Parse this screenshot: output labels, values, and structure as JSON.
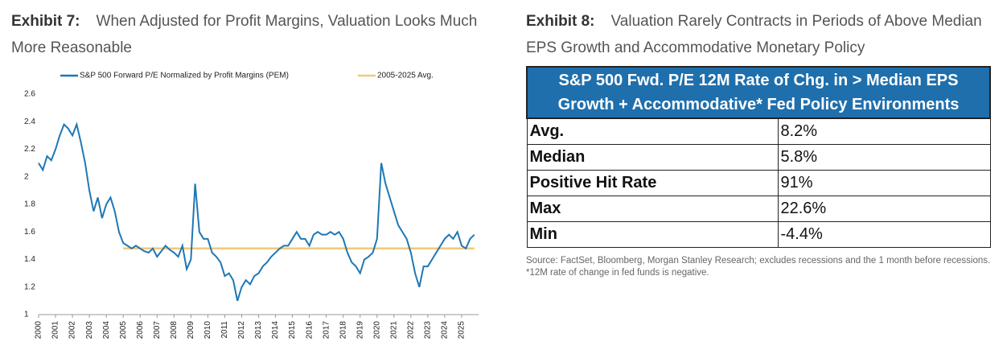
{
  "exhibit7": {
    "label": "Exhibit 7:",
    "title": "When Adjusted for Profit Margins, Valuation Looks Much More Reasonable"
  },
  "chart_data": {
    "type": "line",
    "x": [
      2000,
      2000.25,
      2000.5,
      2000.75,
      2001,
      2001.25,
      2001.5,
      2001.75,
      2002,
      2002.25,
      2002.5,
      2002.75,
      2003,
      2003.25,
      2003.5,
      2003.75,
      2004,
      2004.25,
      2004.5,
      2004.75,
      2005,
      2005.25,
      2005.5,
      2005.75,
      2006,
      2006.25,
      2006.5,
      2006.75,
      2007,
      2007.25,
      2007.5,
      2007.75,
      2008,
      2008.25,
      2008.5,
      2008.75,
      2009,
      2009.25,
      2009.5,
      2009.75,
      2010,
      2010.25,
      2010.5,
      2010.75,
      2011,
      2011.25,
      2011.5,
      2011.75,
      2012,
      2012.25,
      2012.5,
      2012.75,
      2013,
      2013.25,
      2013.5,
      2013.75,
      2014,
      2014.25,
      2014.5,
      2014.75,
      2015,
      2015.25,
      2015.5,
      2015.75,
      2016,
      2016.25,
      2016.5,
      2016.75,
      2017,
      2017.25,
      2017.5,
      2017.75,
      2018,
      2018.25,
      2018.5,
      2018.75,
      2019,
      2019.25,
      2019.5,
      2019.75,
      2020,
      2020.25,
      2020.5,
      2020.75,
      2021,
      2021.25,
      2021.5,
      2021.75,
      2022,
      2022.25,
      2022.5,
      2022.75,
      2023,
      2023.25,
      2023.5,
      2023.75,
      2024,
      2024.25,
      2024.5,
      2024.75,
      2025,
      2025.25,
      2025.5,
      2025.75
    ],
    "series": [
      {
        "name": "S&P 500 Forward P/E Normalized by Profit Margins (PEM)",
        "color": "#1f77b4",
        "values": [
          2.1,
          2.05,
          2.15,
          2.12,
          2.2,
          2.3,
          2.38,
          2.35,
          2.3,
          2.38,
          2.25,
          2.1,
          1.9,
          1.75,
          1.85,
          1.7,
          1.8,
          1.85,
          1.75,
          1.6,
          1.52,
          1.5,
          1.48,
          1.5,
          1.48,
          1.46,
          1.45,
          1.48,
          1.42,
          1.46,
          1.5,
          1.47,
          1.45,
          1.42,
          1.5,
          1.33,
          1.4,
          1.95,
          1.6,
          1.55,
          1.55,
          1.45,
          1.42,
          1.38,
          1.28,
          1.3,
          1.25,
          1.1,
          1.2,
          1.25,
          1.22,
          1.28,
          1.3,
          1.35,
          1.38,
          1.42,
          1.45,
          1.48,
          1.5,
          1.5,
          1.55,
          1.6,
          1.55,
          1.55,
          1.5,
          1.58,
          1.6,
          1.58,
          1.58,
          1.6,
          1.58,
          1.6,
          1.55,
          1.45,
          1.38,
          1.35,
          1.3,
          1.4,
          1.42,
          1.45,
          1.55,
          2.1,
          1.95,
          1.85,
          1.75,
          1.65,
          1.6,
          1.55,
          1.45,
          1.3,
          1.2,
          1.35,
          1.35,
          1.4,
          1.45,
          1.5,
          1.55,
          1.58,
          1.55,
          1.6,
          1.5,
          1.48,
          1.55,
          1.58
        ]
      }
    ],
    "reference_line": {
      "name": "2005-2025 Avg.",
      "color": "#f2c879",
      "value": 1.48,
      "x_start": 2005,
      "x_end": 2025.75
    },
    "xlim": [
      2000,
      2026
    ],
    "xticks": [
      2000,
      2001,
      2002,
      2003,
      2004,
      2005,
      2006,
      2007,
      2008,
      2009,
      2010,
      2011,
      2012,
      2013,
      2014,
      2015,
      2016,
      2017,
      2018,
      2019,
      2020,
      2021,
      2022,
      2023,
      2024,
      2025
    ],
    "ylim": [
      1,
      2.6
    ],
    "yticks": [
      1,
      1.2,
      1.4,
      1.6,
      1.8,
      2,
      2.2,
      2.4,
      2.6
    ]
  },
  "exhibit8": {
    "label": "Exhibit 8:",
    "title": "Valuation Rarely Contracts in Periods of Above Median EPS Growth and Accommodative Monetary Policy",
    "table": {
      "header": "S&P 500 Fwd. P/E 12M Rate of Chg. in > Median EPS Growth + Accommodative* Fed Policy Environments",
      "rows": [
        [
          "Avg.",
          "8.2%"
        ],
        [
          "Median",
          "5.8%"
        ],
        [
          "Positive Hit Rate",
          "91%"
        ],
        [
          "Max",
          "22.6%"
        ],
        [
          "Min",
          "-4.4%"
        ]
      ]
    },
    "source": "Source: FactSet, Bloomberg, Morgan Stanley Research; excludes recessions and the 1 month before recessions. *12M rate of change in fed funds is negative."
  }
}
